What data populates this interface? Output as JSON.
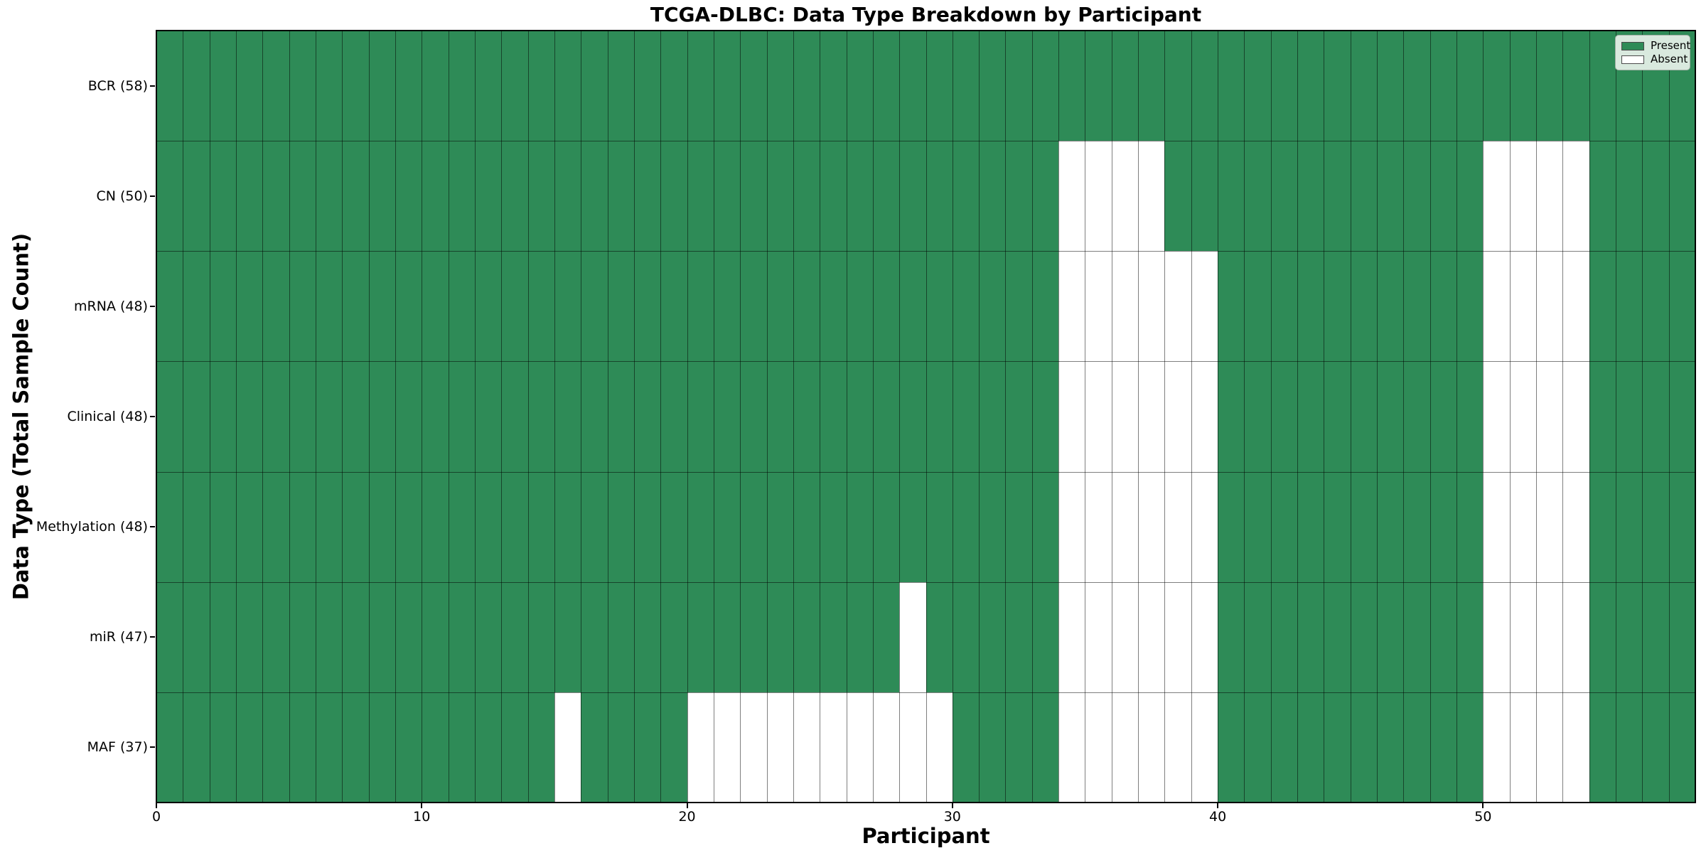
{
  "chart_data": {
    "type": "heatmap",
    "title": "TCGA-DLBC: Data Type Breakdown by Participant",
    "xlabel": "Participant",
    "ylabel": "Data Type (Total Sample Count)",
    "n_participants": 58,
    "n_rows": 7,
    "x_ticks": [
      0,
      10,
      20,
      30,
      40,
      50
    ],
    "grid": true,
    "legend_position": "upper right",
    "colors": {
      "present": "#2E8B57",
      "absent": "#ffffff",
      "grid_line": "rgba(0,0,0,0.5)",
      "legend_bg": "#d9e9de"
    },
    "legend": [
      {
        "label": "Present",
        "color": "#2E8B57"
      },
      {
        "label": "Absent",
        "color": "#ffffff"
      }
    ],
    "rows": [
      {
        "label": "BCR (58)",
        "data_type": "BCR",
        "count": 58,
        "absent_participants": []
      },
      {
        "label": "CN (50)",
        "data_type": "CN",
        "count": 50,
        "absent_participants": [
          34,
          35,
          36,
          37,
          50,
          51,
          52,
          53
        ]
      },
      {
        "label": "mRNA (48)",
        "data_type": "mRNA",
        "count": 48,
        "absent_participants": [
          34,
          35,
          36,
          37,
          38,
          39,
          50,
          51,
          52,
          53
        ]
      },
      {
        "label": "Clinical (48)",
        "data_type": "Clinical",
        "count": 48,
        "absent_participants": [
          34,
          35,
          36,
          37,
          38,
          39,
          50,
          51,
          52,
          53
        ]
      },
      {
        "label": "Methylation (48)",
        "data_type": "Methylation",
        "count": 48,
        "absent_participants": [
          34,
          35,
          36,
          37,
          38,
          39,
          50,
          51,
          52,
          53
        ]
      },
      {
        "label": "miR (47)",
        "data_type": "miR",
        "count": 47,
        "absent_participants": [
          28,
          34,
          35,
          36,
          37,
          38,
          39,
          50,
          51,
          52,
          53
        ]
      },
      {
        "label": "MAF (37)",
        "data_type": "MAF",
        "count": 37,
        "absent_participants": [
          15,
          20,
          21,
          22,
          23,
          24,
          25,
          26,
          27,
          28,
          29,
          34,
          35,
          36,
          37,
          38,
          39,
          50,
          51,
          52,
          53
        ]
      }
    ]
  }
}
